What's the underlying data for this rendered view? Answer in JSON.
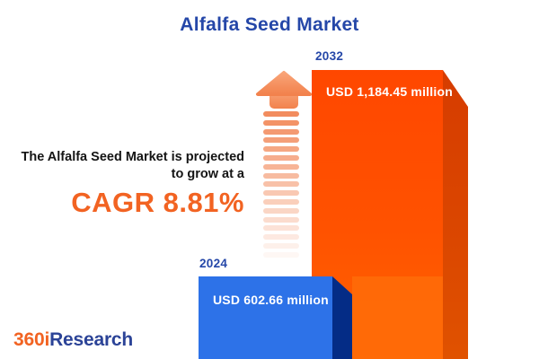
{
  "title": "Alfalfa Seed Market",
  "description": {
    "line1": "The Alfalfa Seed Market is projected",
    "line2": "to grow at a",
    "cagr_label": "CAGR 8.81%"
  },
  "chart_data": {
    "type": "bar",
    "title": "Alfalfa Seed Market",
    "categories": [
      "2024",
      "2032"
    ],
    "values": [
      602.66,
      1184.45
    ],
    "unit": "USD million",
    "value_labels": [
      "USD 602.66 million",
      "USD 1,184.45 million"
    ],
    "cagr_percent": 8.81,
    "ylim": [
      0,
      1184.45
    ],
    "legend_position": "none",
    "grid": false,
    "axes_shown": false,
    "bar_style": "3d-extruded",
    "colors": {
      "bar_2024_face": "#2D72E8",
      "bar_2024_side": "#042C86",
      "bar_2032_face": "#FF4700",
      "bar_2032_side": "#D63C00"
    }
  },
  "arrow": {
    "direction": "up",
    "color": "#F68E5C",
    "style": "striped-fade"
  },
  "logo": {
    "part1": "360i",
    "part2": "Research"
  },
  "accent_colors": {
    "title_blue": "#2547A8",
    "cagr_orange": "#F26322",
    "text_black": "#141414"
  }
}
